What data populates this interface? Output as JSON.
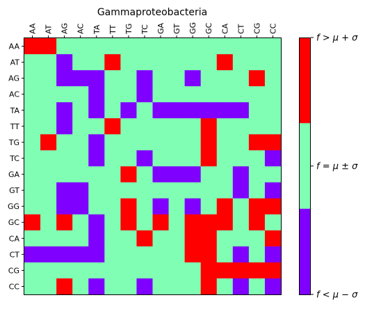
{
  "chart_data": {
    "type": "heatmap",
    "title": "Gammaproteobacteria",
    "x_categories": [
      "AA",
      "AT",
      "AG",
      "AC",
      "TA",
      "TT",
      "TG",
      "TC",
      "GA",
      "GT",
      "GG",
      "GC",
      "CA",
      "CT",
      "CG",
      "CC"
    ],
    "y_categories": [
      "AA",
      "AT",
      "AG",
      "AC",
      "TA",
      "TT",
      "TG",
      "TC",
      "GA",
      "GT",
      "GG",
      "GC",
      "CA",
      "CT",
      "CG",
      "CC"
    ],
    "levels": [
      {
        "value": -1,
        "label": "f < μ − σ",
        "color": "#7f00ff"
      },
      {
        "value": 0,
        "label": "f = μ ± σ",
        "color": "#80ffb4"
      },
      {
        "value": 1,
        "label": "f > μ + σ",
        "color": "#ff0000"
      }
    ],
    "colorbar_ticks": [
      {
        "value": -1,
        "label": "f < μ − σ"
      },
      {
        "value": 0,
        "label": "f = μ ± σ"
      },
      {
        "value": 1,
        "label": "f > μ + σ"
      }
    ],
    "values": [
      [
        1,
        1,
        0,
        0,
        0,
        0,
        0,
        0,
        0,
        0,
        0,
        0,
        0,
        0,
        0,
        0
      ],
      [
        0,
        0,
        -1,
        0,
        0,
        1,
        0,
        0,
        0,
        0,
        0,
        0,
        1,
        0,
        0,
        0
      ],
      [
        0,
        0,
        -1,
        -1,
        -1,
        0,
        0,
        -1,
        0,
        0,
        -1,
        0,
        0,
        0,
        1,
        0
      ],
      [
        0,
        0,
        0,
        0,
        -1,
        0,
        0,
        -1,
        0,
        0,
        0,
        0,
        0,
        0,
        0,
        0
      ],
      [
        0,
        0,
        -1,
        0,
        -1,
        0,
        -1,
        0,
        -1,
        -1,
        -1,
        -1,
        -1,
        -1,
        0,
        0
      ],
      [
        0,
        0,
        -1,
        0,
        0,
        1,
        0,
        0,
        0,
        0,
        0,
        1,
        0,
        0,
        0,
        0
      ],
      [
        0,
        1,
        0,
        0,
        -1,
        0,
        0,
        0,
        0,
        0,
        0,
        1,
        0,
        0,
        1,
        1
      ],
      [
        0,
        0,
        0,
        0,
        -1,
        0,
        0,
        -1,
        0,
        0,
        0,
        1,
        0,
        0,
        0,
        -1
      ],
      [
        0,
        0,
        0,
        0,
        0,
        0,
        1,
        0,
        -1,
        -1,
        -1,
        0,
        0,
        -1,
        0,
        0
      ],
      [
        0,
        0,
        -1,
        -1,
        0,
        0,
        0,
        0,
        0,
        0,
        0,
        0,
        0,
        -1,
        0,
        -1
      ],
      [
        0,
        0,
        -1,
        -1,
        0,
        0,
        1,
        0,
        -1,
        0,
        -1,
        0,
        1,
        0,
        1,
        1
      ],
      [
        1,
        0,
        1,
        0,
        -1,
        0,
        1,
        0,
        1,
        0,
        1,
        1,
        1,
        0,
        1,
        0
      ],
      [
        0,
        0,
        0,
        0,
        -1,
        0,
        0,
        1,
        0,
        0,
        1,
        1,
        0,
        0,
        0,
        1
      ],
      [
        -1,
        -1,
        -1,
        -1,
        -1,
        0,
        0,
        0,
        0,
        0,
        1,
        1,
        0,
        -1,
        0,
        -1
      ],
      [
        0,
        0,
        0,
        0,
        0,
        0,
        0,
        0,
        0,
        0,
        0,
        1,
        1,
        1,
        1,
        1
      ],
      [
        0,
        0,
        1,
        0,
        -1,
        0,
        0,
        -1,
        0,
        0,
        0,
        1,
        0,
        -1,
        0,
        -1
      ]
    ]
  }
}
